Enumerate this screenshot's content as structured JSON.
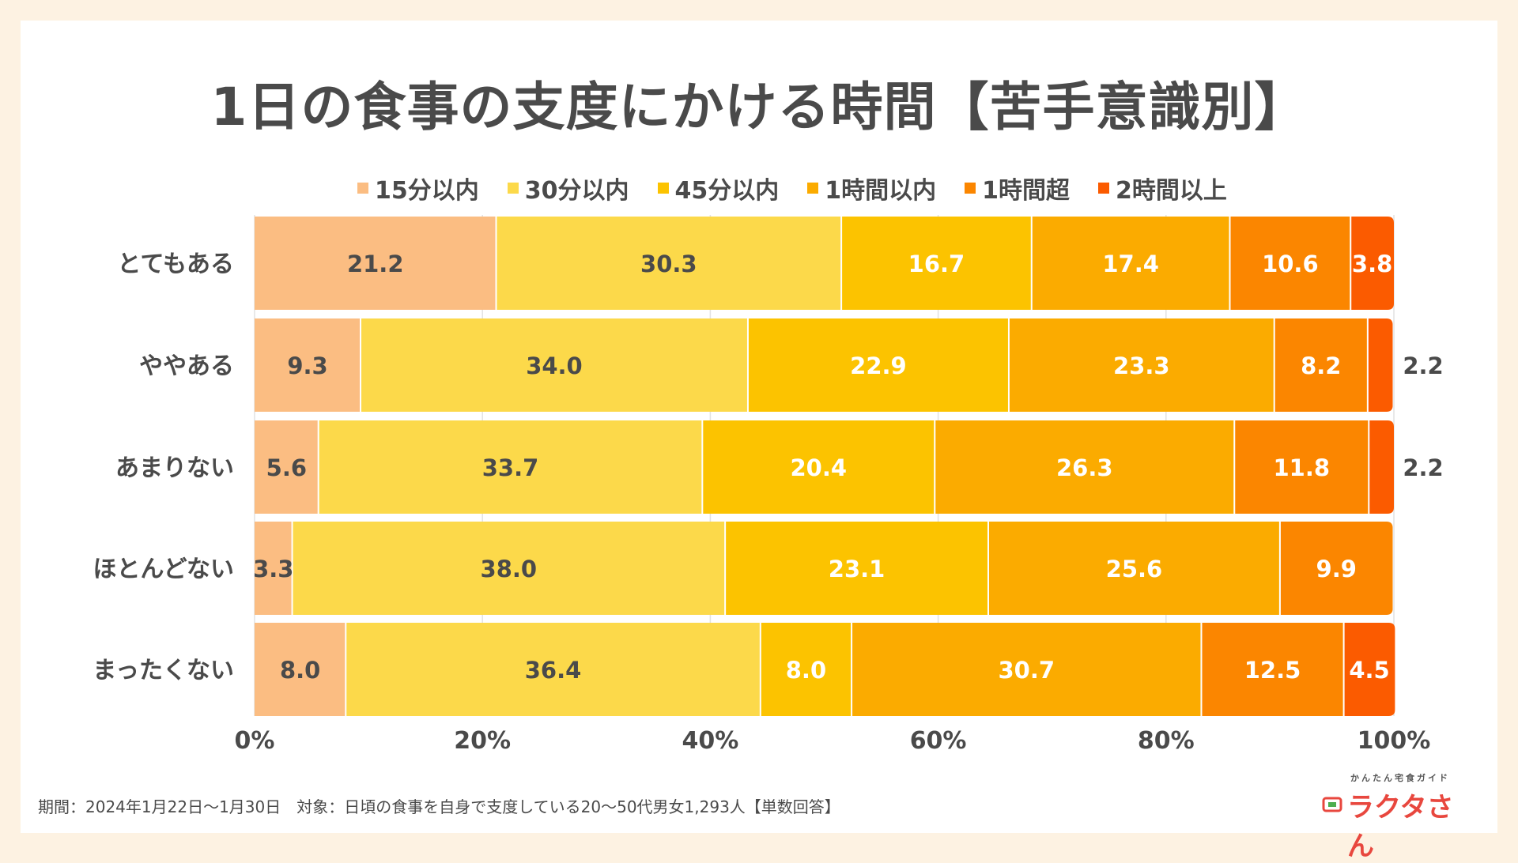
{
  "title": "1日の食事の支度にかける時間【苦手意識別】",
  "footer_note": "期間：2024年1月22日〜1月30日　対象：日頃の食事を自身で支度している20〜50代男女1,293人【単数回答】",
  "logo": {
    "subtitle": "かんたん宅食ガイド",
    "name": "ラクタさん"
  },
  "chart_data": {
    "type": "bar",
    "orientation": "horizontal",
    "stacked": true,
    "title": "1日の食事の支度にかける時間【苦手意識別】",
    "categories": [
      "とてもある",
      "ややある",
      "あまりない",
      "ほとんどない",
      "まったくない"
    ],
    "series": [
      {
        "name": "15分以内",
        "color": "#fbbd82",
        "values": [
          21.2,
          9.3,
          5.6,
          3.3,
          8.0
        ]
      },
      {
        "name": "30分以内",
        "color": "#fcd94a",
        "values": [
          30.3,
          34.0,
          33.7,
          38.0,
          36.4
        ]
      },
      {
        "name": "45分以内",
        "color": "#fcc300",
        "values": [
          16.7,
          22.9,
          20.4,
          23.1,
          8.0
        ]
      },
      {
        "name": "1時間以内",
        "color": "#fbab00",
        "values": [
          17.4,
          23.3,
          26.3,
          25.6,
          30.7
        ]
      },
      {
        "name": "1時間超",
        "color": "#fb8600",
        "values": [
          10.6,
          8.2,
          11.8,
          9.9,
          12.5
        ]
      },
      {
        "name": "2時間以上",
        "color": "#fb5b00",
        "values": [
          3.8,
          2.2,
          2.2,
          0,
          4.5
        ]
      }
    ],
    "x_ticks": [
      "0%",
      "20%",
      "40%",
      "60%",
      "80%",
      "100%"
    ],
    "xlim": [
      0,
      100
    ],
    "legend_position": "top"
  }
}
